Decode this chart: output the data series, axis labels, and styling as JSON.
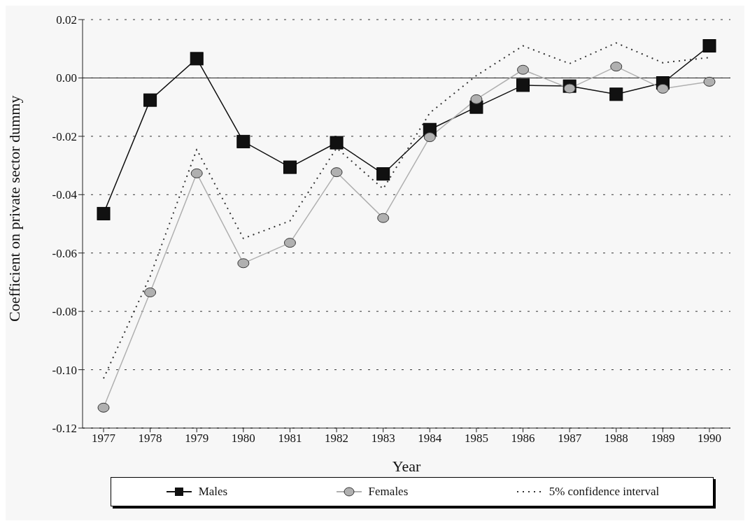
{
  "chart_data": {
    "type": "line",
    "xlabel": "Year",
    "ylabel": "Coefficient on private sector dummy",
    "categories": [
      "1977",
      "1978",
      "1979",
      "1980",
      "1981",
      "1982",
      "1983",
      "1984",
      "1985",
      "1986",
      "1987",
      "1988",
      "1989",
      "1990"
    ],
    "series": [
      {
        "name": "Males",
        "color": "#111111",
        "marker": "square",
        "line_style": "solid",
        "values": [
          -0.0465,
          -0.0076,
          0.0066,
          -0.0218,
          -0.0306,
          -0.0222,
          -0.0329,
          -0.0177,
          -0.01,
          -0.0025,
          -0.0028,
          -0.0056,
          -0.0017,
          0.011
        ]
      },
      {
        "name": "Females",
        "color": "#b0b0b0",
        "marker": "circle",
        "line_style": "solid",
        "values": [
          -0.113,
          -0.0735,
          -0.0327,
          -0.0635,
          -0.0565,
          -0.0323,
          -0.048,
          -0.0203,
          -0.0073,
          0.0028,
          -0.0036,
          0.0039,
          -0.0037,
          -0.0013
        ]
      },
      {
        "name": "5% confidence interval",
        "color": "#333333",
        "marker": "none",
        "line_style": "dotted",
        "values": [
          -0.103,
          -0.068,
          -0.0245,
          -0.055,
          -0.049,
          -0.024,
          -0.038,
          -0.012,
          0.0008,
          0.011,
          0.0049,
          0.012,
          0.0052,
          0.007
        ]
      }
    ],
    "ylim": [
      -0.12,
      0.02
    ],
    "yticks": [
      0.02,
      {
        "value": 0,
        "label": "0.00"
      },
      -0.02,
      -0.04,
      -0.06,
      -0.08,
      {
        "value": -0.1,
        "label": "-0.10"
      },
      -0.12
    ],
    "grid": "y",
    "ref_lines": [
      {
        "axis": "y",
        "value": 0,
        "color": "#222222",
        "line_style": "solid"
      }
    ],
    "legend": "bottom"
  }
}
